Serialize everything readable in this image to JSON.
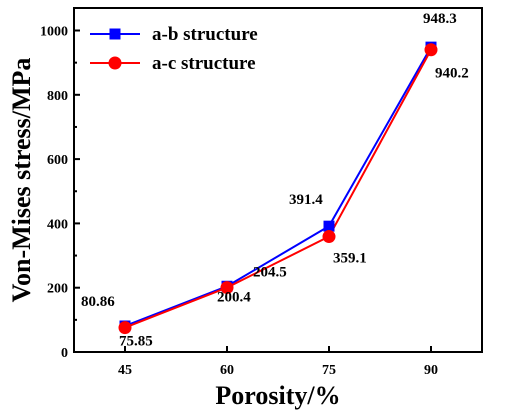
{
  "chart_data": {
    "type": "line",
    "xlabel": "Porosity/%",
    "ylabel": "Von-Mises stress/MPa",
    "categories": [
      "45",
      "60",
      "75",
      "90"
    ],
    "x": [
      45,
      60,
      75,
      90
    ],
    "xlim": [
      37.5,
      97.5
    ],
    "ylim": [
      0,
      1070
    ],
    "yticks": [
      "0",
      "200",
      "400",
      "600",
      "800",
      "1000"
    ],
    "ytick_values": [
      0,
      200,
      400,
      600,
      800,
      1000
    ],
    "legend": "top-left",
    "grid": false,
    "series": [
      {
        "name": "a-b structure",
        "values": [
          80.86,
          204.5,
          391.4,
          948.3
        ],
        "labels": [
          "80.86",
          "204.5",
          "391.4",
          "948.3"
        ],
        "color": "#0000ff",
        "marker": "square"
      },
      {
        "name": "a-c structure",
        "values": [
          75.85,
          200.4,
          359.1,
          940.2
        ],
        "labels": [
          "75.85",
          "200.4",
          "359.1",
          "940.2"
        ],
        "color": "#ff0000",
        "marker": "circle"
      }
    ]
  }
}
